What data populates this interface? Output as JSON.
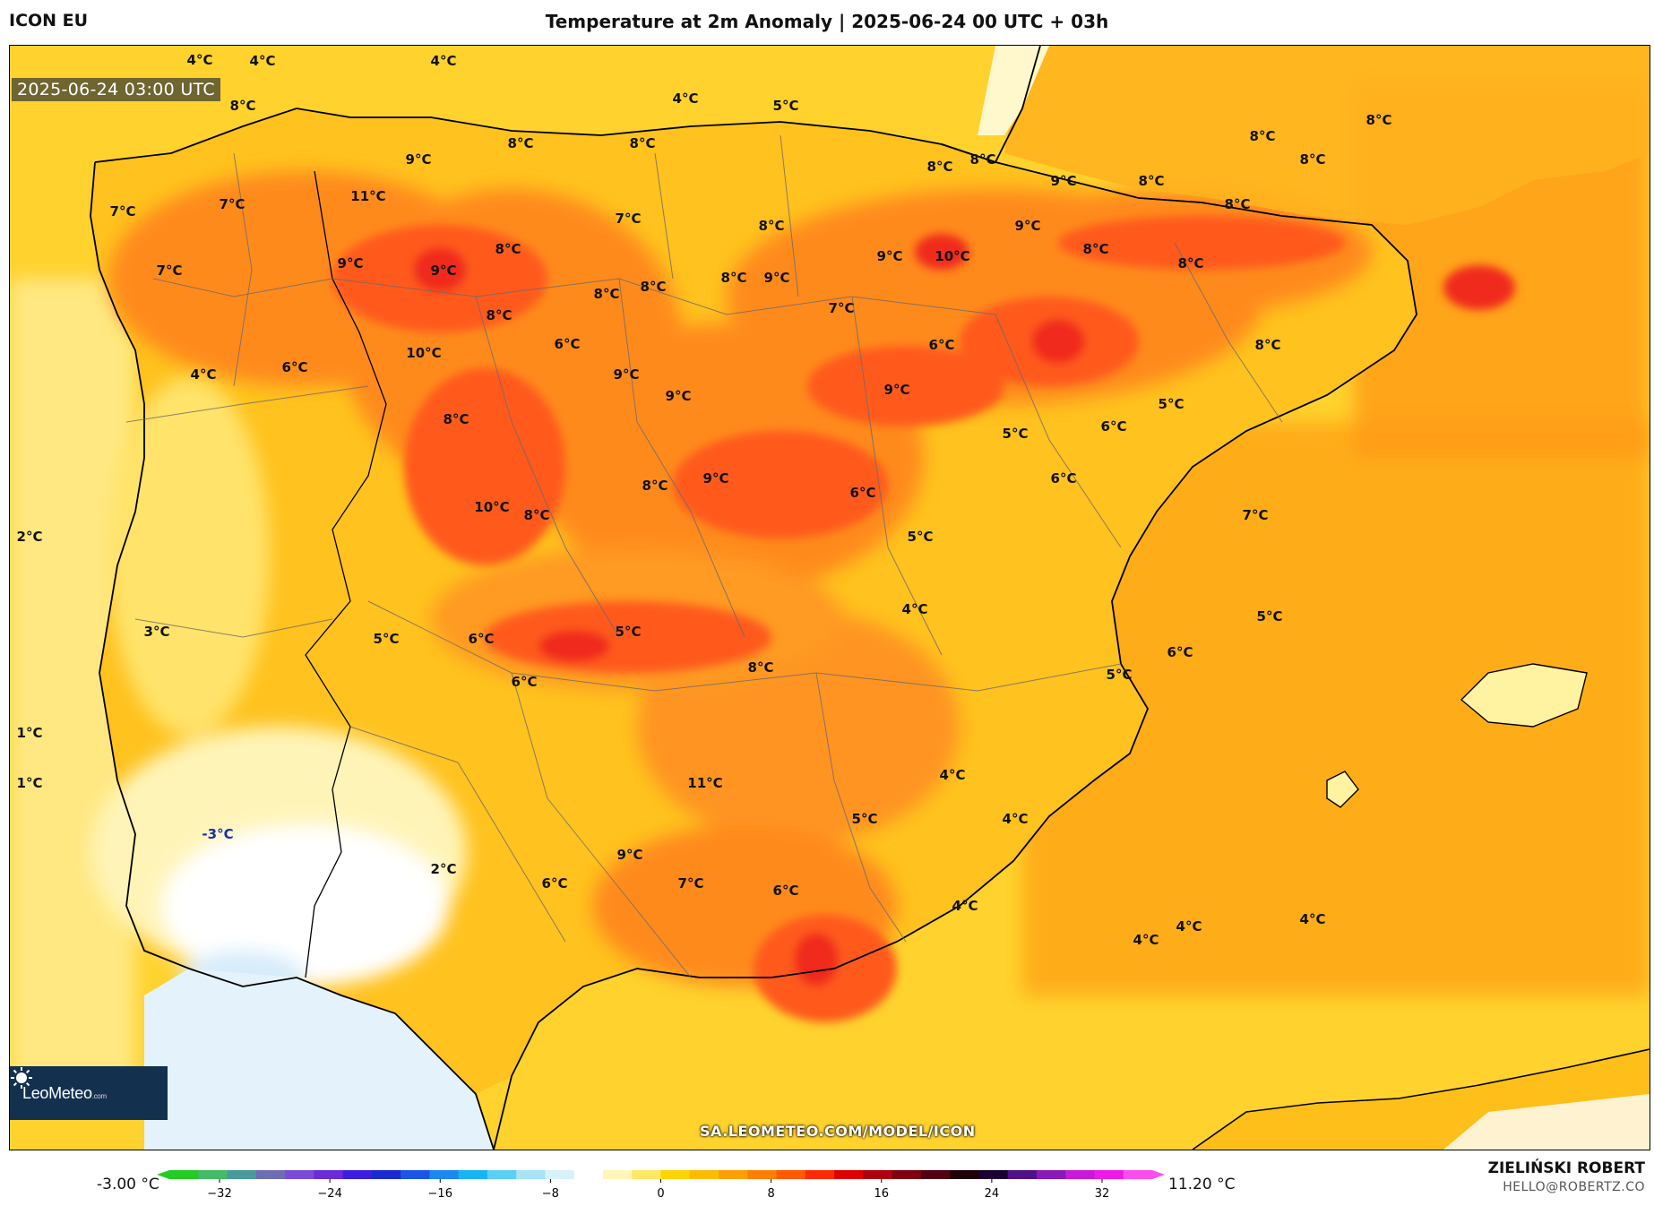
{
  "header": {
    "model": "ICON EU",
    "title": "Temperature at 2m Anomaly | 2025-06-24 00 UTC + 03h"
  },
  "map": {
    "timestamp": "2025-06-24 03:00 UTC",
    "source_url": "SA.LEOMETEO.COM/MODEL/ICON",
    "logo_text": "LeoMeteo",
    "logo_suffix": ".com",
    "palette": {
      "sea_anomaly": "#ffb300",
      "land_base": "#ffcf2a",
      "warm": "#ff8a1c",
      "hot": "#ff5a1a",
      "very_hot": "#f02a1a",
      "cool": "#fff3b0",
      "cold": "#ffffff",
      "negative": "#dff0fb"
    },
    "labels": [
      {
        "text": "4°C"
      },
      {
        "text": "4°C"
      },
      {
        "text": "4°C"
      },
      {
        "text": "8°C"
      },
      {
        "text": "4°C"
      },
      {
        "text": "5°C"
      },
      {
        "text": "8°C"
      },
      {
        "text": "8°C"
      },
      {
        "text": "9°C"
      },
      {
        "text": "8°C"
      },
      {
        "text": "8°C"
      },
      {
        "text": "9°C"
      },
      {
        "text": "8°C"
      },
      {
        "text": "8°C"
      },
      {
        "text": "8°C"
      },
      {
        "text": "8°C"
      },
      {
        "text": "7°C"
      },
      {
        "text": "11°C"
      },
      {
        "text": "7°C"
      },
      {
        "text": "8°C"
      },
      {
        "text": "9°C"
      },
      {
        "text": "8°C"
      },
      {
        "text": "7°C"
      },
      {
        "text": "8°C"
      },
      {
        "text": "9°C"
      },
      {
        "text": "9°C"
      },
      {
        "text": "10°C"
      },
      {
        "text": "8°C"
      },
      {
        "text": "9°C"
      },
      {
        "text": "8°C"
      },
      {
        "text": "7°C"
      },
      {
        "text": "8°C"
      },
      {
        "text": "8°C"
      },
      {
        "text": "9°C"
      },
      {
        "text": "8°C"
      },
      {
        "text": "7°C"
      },
      {
        "text": "10°C"
      },
      {
        "text": "8°C"
      },
      {
        "text": "4°C"
      },
      {
        "text": "6°C"
      },
      {
        "text": "6°C"
      },
      {
        "text": "9°C"
      },
      {
        "text": "9°C"
      },
      {
        "text": "9°C"
      },
      {
        "text": "6°C"
      },
      {
        "text": "8°C"
      },
      {
        "text": "5°C"
      },
      {
        "text": "6°C"
      },
      {
        "text": "5°C"
      },
      {
        "text": "8°C"
      },
      {
        "text": "9°C"
      },
      {
        "text": "6°C"
      },
      {
        "text": "10°C"
      },
      {
        "text": "8°C"
      },
      {
        "text": "8°C"
      },
      {
        "text": "2°C"
      },
      {
        "text": "6°C"
      },
      {
        "text": "5°C"
      },
      {
        "text": "4°C"
      },
      {
        "text": "3°C"
      },
      {
        "text": "5°C"
      },
      {
        "text": "6°C"
      },
      {
        "text": "7°C"
      },
      {
        "text": "5°C"
      },
      {
        "text": "8°C"
      },
      {
        "text": "6°C"
      },
      {
        "text": "5°C"
      },
      {
        "text": "5°C"
      },
      {
        "text": "6°C"
      },
      {
        "text": "1°C"
      },
      {
        "text": "1°C"
      },
      {
        "text": "11°C"
      },
      {
        "text": "4°C"
      },
      {
        "text": "5°C"
      },
      {
        "text": "4°C"
      },
      {
        "text": "-3°C",
        "negative": true
      },
      {
        "text": "9°C"
      },
      {
        "text": "2°C"
      },
      {
        "text": "6°C"
      },
      {
        "text": "7°C"
      },
      {
        "text": "6°C"
      },
      {
        "text": "4°C"
      },
      {
        "text": "4°C"
      },
      {
        "text": "4°C"
      },
      {
        "text": "4°C"
      }
    ]
  },
  "colorbar": {
    "min_label": "-3.00 °C",
    "max_label": "11.20 °C",
    "ticks": [
      "−32",
      "−24",
      "−16",
      "−8",
      "0",
      "8",
      "16",
      "24",
      "32"
    ],
    "colors": [
      "#22cc22",
      "#44bb66",
      "#4a9a9a",
      "#6d6db6",
      "#7a4ad8",
      "#6a2bd8",
      "#3d1ee0",
      "#1a2ad0",
      "#1a55e8",
      "#1a88f0",
      "#18b4f4",
      "#5ad0f4",
      "#a6e4f6",
      "#d8f2fa",
      "#ffffff",
      "#fff6b8",
      "#ffe866",
      "#ffd400",
      "#ffbb00",
      "#ff9f00",
      "#ff7f00",
      "#ff5a00",
      "#ff2a00",
      "#e00000",
      "#b00010",
      "#800010",
      "#500010",
      "#200008",
      "#1a0030",
      "#50108a",
      "#8a18b8",
      "#c81ad8",
      "#f01ae8",
      "#ff4cf0"
    ]
  },
  "footer": {
    "author": "ZIELIŃSKI ROBERT",
    "email": "HELLO@ROBERTZ.CO"
  }
}
